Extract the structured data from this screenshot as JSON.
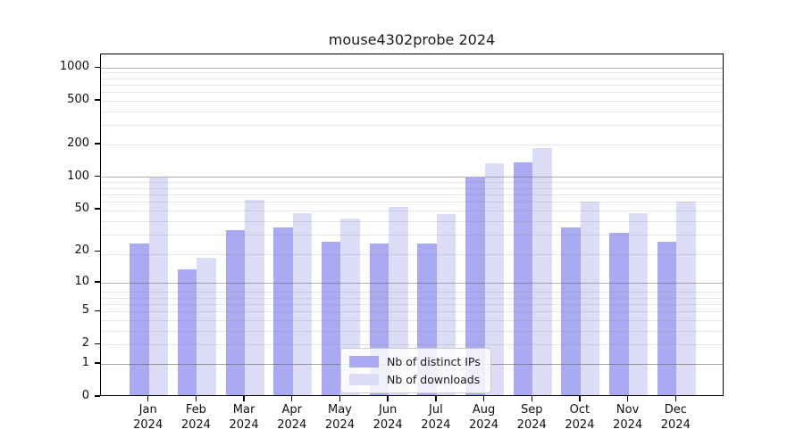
{
  "chart_data": {
    "type": "bar",
    "title": "mouse4302probe 2024",
    "scale": "log1p",
    "grid": true,
    "legend_position": "lower center",
    "categories": [
      "Jan",
      "Feb",
      "Mar",
      "Apr",
      "May",
      "Jun",
      "Jul",
      "Aug",
      "Sep",
      "Oct",
      "Nov",
      "Dec"
    ],
    "year": "2024",
    "series": [
      {
        "name": "Nb of distinct IPs",
        "key": "distinct-ips",
        "color": "#aaaaf2",
        "values": [
          23,
          13,
          31,
          33,
          24,
          23,
          23,
          96,
          133,
          33,
          29,
          24
        ]
      },
      {
        "name": "Nb of downloads",
        "key": "downloads",
        "color": "#dcdcf6",
        "values": [
          95,
          17,
          60,
          45,
          40,
          51,
          44,
          130,
          178,
          57,
          45,
          57
        ]
      }
    ],
    "y_ticks": [
      0,
      1,
      2,
      5,
      10,
      20,
      50,
      100,
      200,
      500,
      1000
    ],
    "major_gridline_values": [
      1,
      10,
      100,
      1000
    ],
    "ylim": [
      0,
      1300
    ],
    "xlabel": "",
    "ylabel": ""
  },
  "colors": {
    "bar_distinct_ips": "#aaaaf2",
    "bar_downloads": "#dcdcf6",
    "major_grid": "#b5b5b5",
    "minor_grid": "#e8e8e8",
    "axis": "#000000",
    "text": "#1a1a1a"
  }
}
